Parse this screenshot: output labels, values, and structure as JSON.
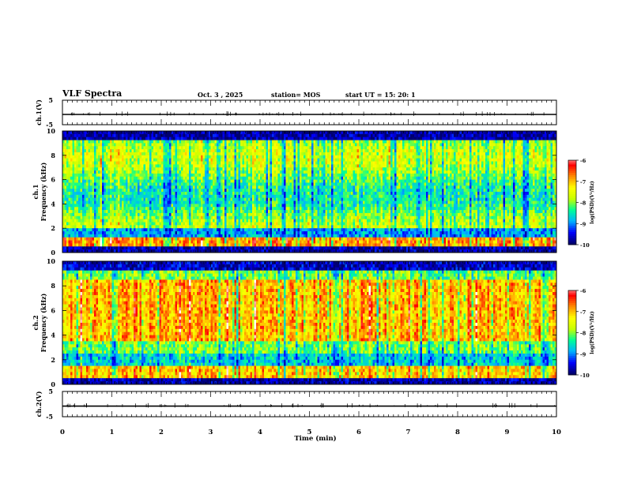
{
  "header": {
    "title": "VLF Spectra",
    "date": "Oct. 3  , 2025",
    "station": "station= MOS",
    "start": "start  UT  =   15: 20: 1"
  },
  "colors": {
    "spectrum": [
      "#00006e",
      "#0000ff",
      "#00b4ff",
      "#00ff96",
      "#c8ff00",
      "#ffff00",
      "#ff8c00",
      "#ff0000",
      "#ffffff"
    ]
  },
  "chart_data": [
    {
      "type": "line",
      "name": "ch1-voltage",
      "ylabel": "ch.1(V)",
      "ylim": [
        -5,
        5
      ],
      "yticks": [
        5,
        -5
      ],
      "x": [
        0,
        10
      ],
      "values": [
        -0.8,
        -0.8
      ]
    },
    {
      "type": "heatmap",
      "name": "ch1-spectrogram",
      "ylabel": "ch.1\nFrequency (kHz)",
      "ylim": [
        0,
        10
      ],
      "yticks": [
        0,
        2,
        4,
        6,
        8,
        10
      ],
      "xlim": [
        0,
        10
      ],
      "colorbar": {
        "label": "log(PSD)(V²/Hz)",
        "range": [
          -10,
          -6
        ],
        "ticks": [
          "-6",
          "-7",
          "-8",
          "-9",
          "-10"
        ]
      }
    },
    {
      "type": "heatmap",
      "name": "ch2-spectrogram",
      "ylabel": "ch.2\nFrequency (kHz)",
      "ylim": [
        0,
        10
      ],
      "yticks": [
        0,
        2,
        4,
        6,
        8,
        10
      ],
      "xlim": [
        0,
        10
      ],
      "colorbar": {
        "label": "log(PSD)(V²/Hz)",
        "range": [
          -10,
          -6
        ],
        "ticks": [
          "-6",
          "-7",
          "-8",
          "-9",
          "-10"
        ]
      }
    },
    {
      "type": "line",
      "name": "ch2-voltage",
      "ylabel": "ch.2(V)",
      "ylim": [
        -5,
        5
      ],
      "yticks": [
        5,
        -5
      ],
      "x": [
        0,
        10
      ],
      "values": [
        -0.8,
        -0.8
      ]
    }
  ],
  "xaxis": {
    "label": "Time  (min)",
    "range": [
      0,
      10
    ],
    "ticks": [
      "0",
      "1",
      "2",
      "3",
      "4",
      "5",
      "6",
      "7",
      "8",
      "9",
      "10"
    ]
  }
}
